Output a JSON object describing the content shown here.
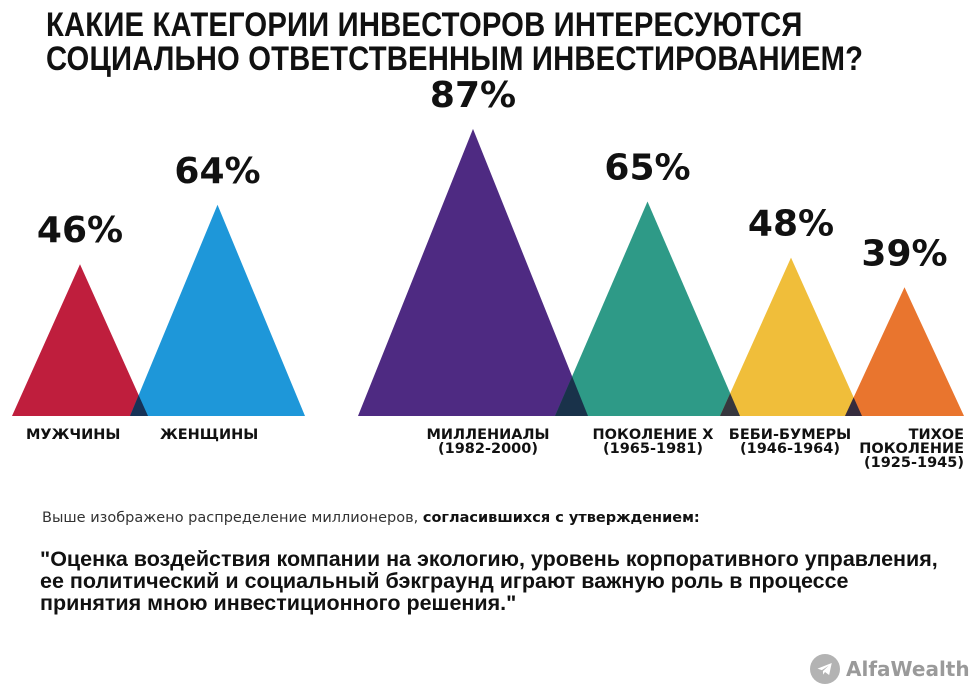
{
  "title": {
    "line1": "КАКИЕ КАТЕГОРИИ ИНВЕСТОРОВ ИНТЕРЕСУЮТСЯ",
    "line2": "СОЦИАЛЬНО ОТВЕТСТВЕННЫМ ИНВЕСТИРОВАНИЕМ?"
  },
  "chart_data": {
    "type": "bar",
    "title": "КАКИЕ КАТЕГОРИИ ИНВЕСТОРОВ ИНТЕРЕСУЮТСЯ СОЦИАЛЬНО ОТВЕТСТВЕННЫМ ИНВЕСТИРОВАНИЕМ?",
    "unit": "%",
    "categories": [
      {
        "label": "МУЖЧИНЫ",
        "sublabel": "",
        "value": 46,
        "value_label": "46%",
        "color": "#bf1e3d"
      },
      {
        "label": "ЖЕНЩИНЫ",
        "sublabel": "",
        "value": 64,
        "value_label": "64%",
        "color": "#1e97d9"
      },
      {
        "label": "МИЛЛЕНИАЛЫ",
        "sublabel": "(1982-2000)",
        "value": 87,
        "value_label": "87%",
        "color": "#4e2a82"
      },
      {
        "label": "ПОКОЛЕНИЕ Х",
        "sublabel": "(1965-1981)",
        "value": 65,
        "value_label": "65%",
        "color": "#2e9a87"
      },
      {
        "label": "БЕБИ-БУМЕРЫ",
        "sublabel": "(1946-1964)",
        "value": 48,
        "value_label": "48%",
        "color": "#f0be3a"
      },
      {
        "label": "ТИХОЕ ПОКОЛЕНИЕ",
        "sublabel": "(1925-1945)",
        "value": 39,
        "value_label": "39%",
        "color": "#e9752e"
      }
    ],
    "overlap_color": "#15203f",
    "grid": false,
    "legend": "none"
  },
  "caption": {
    "normal": "Выше изображено распределение миллионеров, ",
    "bold": "согласившихся с утверждением:"
  },
  "quote": {
    "line1": "\"Оценка воздействия компании на экологию, уровень корпоративного управления,",
    "line2": "ее политический и социальный бэкграунд играют важную роль в процессе",
    "line3": "принятия мною инвестиционного решения.\""
  },
  "brand": {
    "name": "AlfaWealth",
    "icon": "telegram-icon"
  }
}
